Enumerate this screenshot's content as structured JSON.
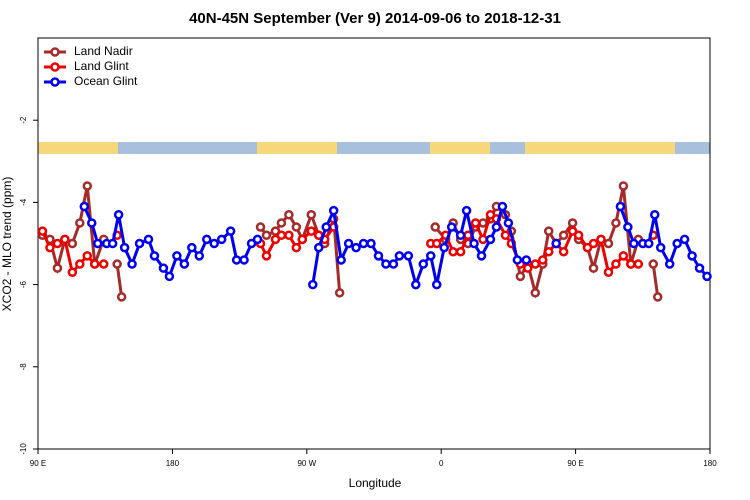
{
  "chart_data": {
    "type": "line",
    "title": "40N-45N September (Ver 9)   2014-09-06 to 2018-12-31",
    "x_label": "Longitude",
    "y_label": "XCO2 - MLO trend (ppm)",
    "xlim": [
      90,
      540
    ],
    "ylim": [
      -10,
      0
    ],
    "xticks": [
      {
        "value": 90,
        "label": "90 E"
      },
      180,
      {
        "value": 270,
        "label": "90 W"
      },
      {
        "value": 360,
        "label": "0"
      },
      {
        "value": 450,
        "label": "90 E"
      },
      {
        "value": 540,
        "label": "180"
      }
    ],
    "yticks": [
      -10,
      -8,
      -6,
      -4,
      -2
    ],
    "legend": "upper left",
    "series": [
      {
        "name": "Land Nadir",
        "color": "#a52a2a",
        "x": [
          93,
          98,
          103,
          108,
          113,
          118,
          123,
          128,
          134,
          null,
          143,
          146,
          null,
          239,
          243,
          249,
          253,
          258,
          263,
          267,
          273,
          278,
          282,
          288,
          292,
          null,
          356,
          363,
          368,
          373,
          378,
          383,
          388,
          393,
          397,
          403,
          407,
          413,
          418,
          423,
          428,
          432,
          437,
          442,
          448,
          452,
          458,
          462,
          467,
          472,
          477,
          482,
          487,
          492,
          null,
          502,
          505
        ],
        "values": [
          -4.8,
          -4.9,
          -5.6,
          -4.9,
          -5.0,
          -4.5,
          -3.6,
          -5.5,
          -4.9,
          null,
          -5.5,
          -6.3,
          null,
          -4.6,
          -4.8,
          -4.7,
          -4.5,
          -4.3,
          -4.6,
          -4.9,
          -4.3,
          -4.8,
          -5.0,
          -4.4,
          -6.2,
          null,
          -4.6,
          -4.9,
          -4.5,
          -4.9,
          -5.0,
          -4.6,
          -4.5,
          -4.4,
          -4.1,
          -4.3,
          -4.7,
          -5.8,
          -5.5,
          -6.2,
          -5.5,
          -4.7,
          -5.0,
          -4.8,
          -4.5,
          -4.9,
          -5.1,
          -5.6,
          -4.9,
          -5.0,
          -4.5,
          -3.6,
          -5.5,
          -4.9,
          null,
          -5.5,
          -6.3
        ]
      },
      {
        "name": "Land Glint",
        "color": "#ee0000",
        "x": [
          93,
          98,
          103,
          108,
          113,
          118,
          123,
          128,
          134,
          null,
          143,
          null,
          239,
          243,
          249,
          253,
          258,
          263,
          267,
          273,
          278,
          282,
          288,
          null,
          353,
          357,
          363,
          368,
          373,
          378,
          383,
          388,
          393,
          397,
          403,
          407,
          413,
          418,
          423,
          428,
          432,
          437,
          442,
          448,
          452,
          458,
          462,
          467,
          472,
          477,
          482,
          487,
          492,
          null,
          502
        ],
        "values": [
          -4.7,
          -5.1,
          -5.0,
          -4.9,
          -5.7,
          -5.5,
          -5.3,
          -5.5,
          -5.5,
          null,
          -4.8,
          null,
          -5.0,
          -5.3,
          -4.9,
          -4.8,
          -4.8,
          -5.1,
          -4.9,
          -4.7,
          -4.8,
          -4.9,
          -4.6,
          null,
          -5.0,
          -5.0,
          -4.8,
          -5.2,
          -5.2,
          -4.8,
          -4.5,
          -4.9,
          -4.3,
          -4.4,
          -4.8,
          -5.0,
          -5.5,
          -5.6,
          -5.5,
          -5.4,
          -5.2,
          -5.0,
          -5.2,
          -4.7,
          -4.8,
          -5.1,
          -5.0,
          -4.9,
          -5.7,
          -5.5,
          -5.3,
          -5.5,
          -5.5,
          null,
          -4.8
        ]
      },
      {
        "name": "Ocean Glint",
        "color": "#0000ee",
        "x": [
          121,
          126,
          130,
          136,
          140,
          144,
          148,
          153,
          158,
          164,
          168,
          174,
          178,
          183,
          188,
          193,
          198,
          203,
          208,
          213,
          219,
          223,
          228,
          233,
          237,
          null,
          274,
          278,
          283,
          288,
          293,
          298,
          303,
          308,
          313,
          318,
          323,
          328,
          332,
          338,
          343,
          348,
          353,
          357,
          362,
          367,
          373,
          377,
          382,
          387,
          393,
          397,
          401,
          405,
          411,
          417,
          null,
          437,
          null,
          480,
          485,
          489,
          495,
          499,
          503,
          507,
          513,
          518,
          523,
          528,
          533,
          538
        ],
        "values": [
          -4.1,
          -4.5,
          -5.0,
          -5.0,
          -5.0,
          -4.3,
          -5.1,
          -5.5,
          -5.0,
          -4.9,
          -5.3,
          -5.6,
          -5.8,
          -5.3,
          -5.5,
          -5.1,
          -5.3,
          -4.9,
          -5.0,
          -4.9,
          -4.7,
          -5.4,
          -5.4,
          -5.0,
          -4.9,
          null,
          -6.0,
          -5.1,
          -4.6,
          -4.2,
          -5.4,
          -5.0,
          -5.1,
          -5.0,
          -5.0,
          -5.3,
          -5.5,
          -5.5,
          -5.3,
          -5.3,
          -6.0,
          -5.5,
          -5.3,
          -6.0,
          -5.1,
          -4.6,
          -4.8,
          -4.2,
          -5.0,
          -5.3,
          -4.9,
          -4.6,
          -4.1,
          -4.5,
          -5.4,
          -5.4,
          null,
          -5.0,
          null,
          -4.1,
          -4.6,
          -5.0,
          -5.0,
          -5.0,
          -4.3,
          -5.1,
          -5.5,
          -5.0,
          -4.9,
          -5.3,
          -5.6,
          -5.8
        ]
      }
    ]
  }
}
